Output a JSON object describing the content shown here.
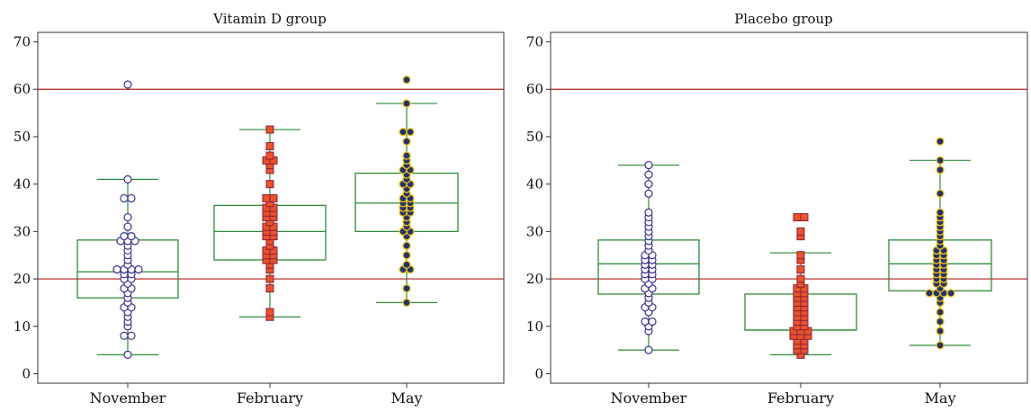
{
  "chart_data": [
    {
      "type": "box",
      "title": "Vitamin D group",
      "categories": [
        "November",
        "February",
        "May"
      ],
      "yticks": [
        0,
        10,
        20,
        30,
        40,
        50,
        60,
        70
      ],
      "ylim": [
        -2,
        72
      ],
      "reference_lines": [
        20,
        60
      ],
      "colors": {
        "box": "#2e8b3a",
        "reference": "#b22222"
      },
      "series": [
        {
          "category": "November",
          "marker": "open-circle",
          "box": {
            "whisker_low": 4,
            "q1": 16,
            "median": 21.5,
            "q3": 28.2,
            "whisker_high": 41
          },
          "points": [
            4,
            8,
            8,
            10,
            11,
            12,
            13,
            14,
            14,
            15,
            16,
            17,
            18,
            18,
            19,
            20,
            20,
            21,
            21,
            22,
            22,
            22,
            22,
            23,
            24,
            25,
            26,
            27,
            28,
            28,
            28,
            29,
            29,
            31,
            33,
            37,
            37,
            41,
            61
          ]
        },
        {
          "category": "February",
          "marker": "square",
          "box": {
            "whisker_low": 12,
            "q1": 24,
            "median": 30,
            "q3": 35.5,
            "whisker_high": 51.5
          },
          "points": [
            12,
            13,
            18,
            20,
            22,
            23,
            24,
            24,
            25,
            25,
            26,
            26,
            27,
            28,
            29,
            29,
            30,
            30,
            31,
            31,
            32,
            33,
            33,
            34,
            34,
            35,
            35,
            36,
            37,
            37,
            40,
            43,
            44,
            45,
            45,
            46,
            48,
            51.5
          ]
        },
        {
          "category": "May",
          "marker": "filled-circle",
          "box": {
            "whisker_low": 15,
            "q1": 30,
            "median": 36,
            "q3": 42.3,
            "whisker_high": 57
          },
          "points": [
            15,
            18,
            22,
            22,
            23,
            25,
            27,
            29,
            30,
            30,
            31,
            32,
            33,
            34,
            34,
            35,
            35,
            36,
            36,
            37,
            37,
            38,
            39,
            40,
            40,
            41,
            42,
            43,
            43,
            44,
            45,
            46,
            49,
            51,
            51,
            57,
            62
          ]
        }
      ]
    },
    {
      "type": "box",
      "title": "Placebo group",
      "categories": [
        "November",
        "February",
        "May"
      ],
      "yticks": [
        0,
        10,
        20,
        30,
        40,
        50,
        60,
        70
      ],
      "ylim": [
        -2,
        72
      ],
      "reference_lines": [
        20,
        60
      ],
      "colors": {
        "box": "#2e8b3a",
        "reference": "#b22222"
      },
      "series": [
        {
          "category": "November",
          "marker": "open-circle",
          "box": {
            "whisker_low": 5,
            "q1": 16.8,
            "median": 23.2,
            "q3": 28.2,
            "whisker_high": 44
          },
          "points": [
            5,
            9,
            10,
            11,
            11,
            13,
            14,
            14,
            15,
            16,
            17,
            18,
            18,
            19,
            20,
            20,
            21,
            21,
            22,
            22,
            23,
            23,
            24,
            24,
            25,
            25,
            26,
            27,
            28,
            29,
            30,
            31,
            32,
            33,
            34,
            38,
            40,
            42,
            44
          ]
        },
        {
          "category": "February",
          "marker": "square",
          "box": {
            "whisker_low": 4,
            "q1": 9.2,
            "median": 9.2,
            "q3": 16.8,
            "whisker_high": 25.5
          },
          "points": [
            4,
            5,
            5,
            6,
            6,
            7,
            7,
            8,
            8,
            8,
            9,
            9,
            9,
            10,
            10,
            11,
            11,
            12,
            12,
            13,
            13,
            14,
            14,
            15,
            15,
            16,
            16,
            17,
            17,
            18,
            18,
            19,
            20,
            22,
            24,
            25,
            29,
            30,
            33,
            33
          ]
        },
        {
          "category": "May",
          "marker": "filled-circle",
          "box": {
            "whisker_low": 6,
            "q1": 17.5,
            "median": 23.2,
            "q3": 28.2,
            "whisker_high": 45
          },
          "points": [
            6,
            9,
            11,
            13,
            15,
            16,
            17,
            17,
            17,
            17,
            18,
            19,
            19,
            20,
            20,
            21,
            21,
            22,
            22,
            23,
            23,
            24,
            24,
            25,
            25,
            26,
            26,
            27,
            28,
            29,
            30,
            31,
            32,
            33,
            34,
            38,
            43,
            45,
            49
          ]
        }
      ]
    }
  ]
}
